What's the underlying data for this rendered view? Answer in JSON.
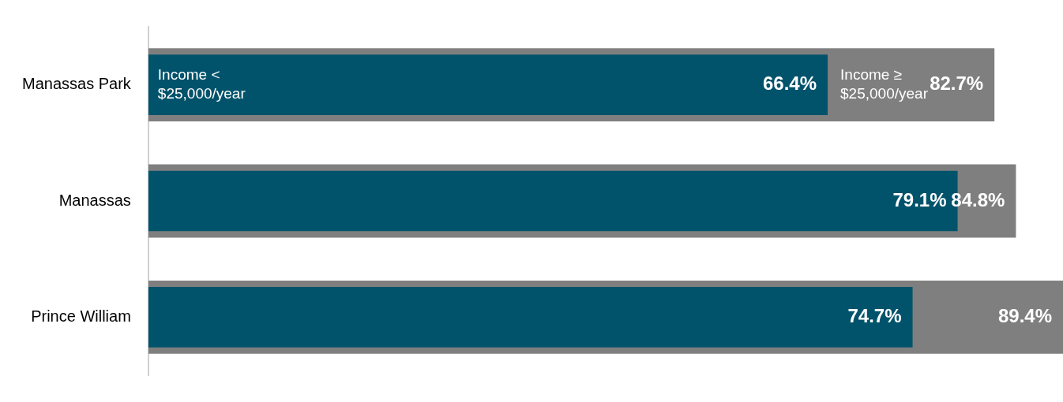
{
  "chart_data": {
    "type": "bar",
    "orientation": "horizontal",
    "categories": [
      "Manassas Park",
      "Manassas",
      "Prince William"
    ],
    "series": [
      {
        "name": "Income < $25,000/year",
        "color": "#01536b",
        "values": [
          66.4,
          79.1,
          74.7
        ],
        "value_labels": [
          "66.4%",
          "79.1%",
          "74.7%"
        ]
      },
      {
        "name": "Income ≥ $25,000/year",
        "color": "#7f7f7f",
        "values": [
          82.7,
          84.8,
          89.4
        ],
        "value_labels": [
          "82.7%",
          "84.8%",
          "89.4%"
        ]
      }
    ],
    "legend": false,
    "grid": false
  }
}
